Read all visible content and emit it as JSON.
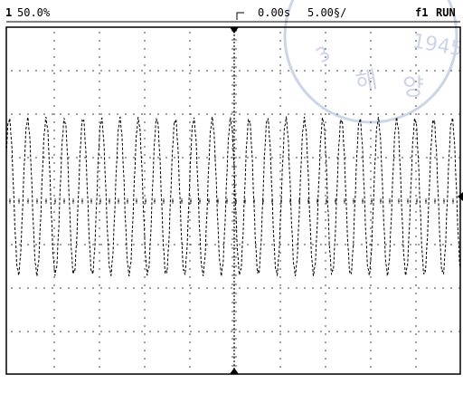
{
  "screen": {
    "channel_label": "1",
    "channel_scale": "50.0%",
    "trigger_position": "0.00s",
    "timebase": "5.00§/",
    "trigger_label": "f1",
    "run_state": "RUN"
  },
  "colors": {
    "trace": "#000000",
    "grid_dots": "#222222",
    "frame": "#000000",
    "watermark": "#6d86bf"
  },
  "icons": {
    "trigger-marker": "down-triangle",
    "ground-marker": "left-triangle"
  },
  "watermark": {
    "text_1945": "1945",
    "text_korean_1": "해",
    "text_korean_2": "양",
    "text_korean_3": "3"
  }
}
